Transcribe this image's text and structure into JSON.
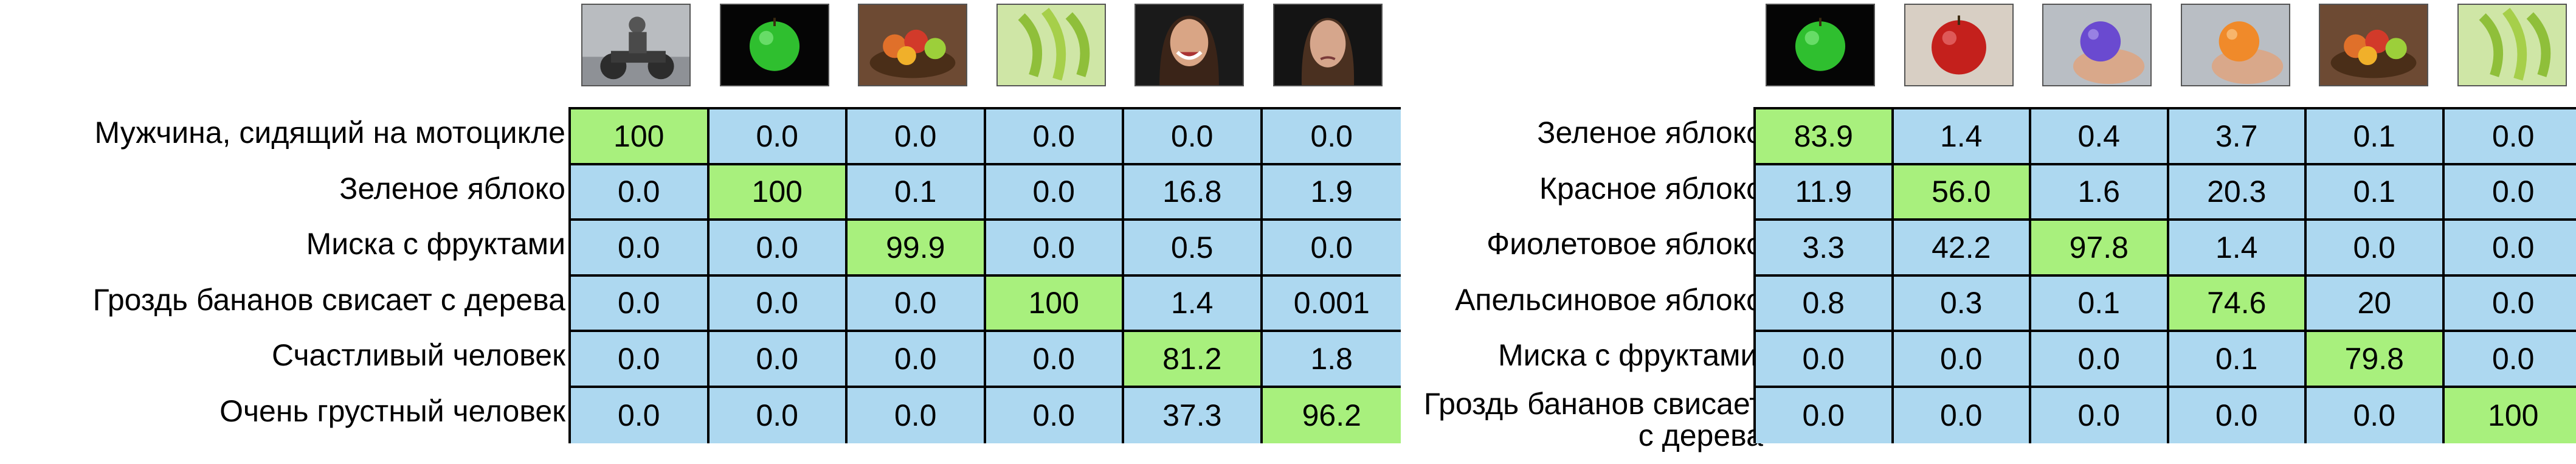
{
  "colors": {
    "cell": "#add8f0",
    "diagonal": "#a8f07d"
  },
  "chart_data": [
    {
      "type": "heatmap",
      "title": "",
      "columns": [
        "motorcycle-rider",
        "green-apple",
        "fruit-bowl",
        "bananas",
        "happy-woman",
        "sad-woman"
      ],
      "rows": [
        "Мужчина, сидящий на мотоцикле",
        "Зеленое яблоко",
        "Миска с фруктами",
        "Гроздь бананов свисает с дерева",
        "Счастливый человек",
        "Очень грустный человек"
      ],
      "values": [
        [
          "100",
          "0.0",
          "0.0",
          "0.0",
          "0.0",
          "0.0"
        ],
        [
          "0.0",
          "100",
          "0.1",
          "0.0",
          "16.8",
          "1.9"
        ],
        [
          "0.0",
          "0.0",
          "99.9",
          "0.0",
          "0.5",
          "0.0"
        ],
        [
          "0.0",
          "0.0",
          "0.0",
          "100",
          "1.4",
          "0.001"
        ],
        [
          "0.0",
          "0.0",
          "0.0",
          "0.0",
          "81.2",
          "1.8"
        ],
        [
          "0.0",
          "0.0",
          "0.0",
          "0.0",
          "37.3",
          "96.2"
        ]
      ],
      "highlight": [
        [
          0,
          0
        ],
        [
          1,
          1
        ],
        [
          2,
          2
        ],
        [
          3,
          3
        ],
        [
          4,
          4
        ],
        [
          5,
          5
        ]
      ]
    },
    {
      "type": "heatmap",
      "title": "",
      "columns": [
        "green-apple",
        "red-apple",
        "purple-apple",
        "orange-apple",
        "fruit-bowl",
        "bananas"
      ],
      "rows": [
        "Зеленое яблоко",
        "Красное яблоко",
        "Фиолетовое яблоко",
        "Апельсиновое яблоко",
        "Миска с фруктами'",
        "Гроздь бананов свисает с дерева"
      ],
      "values": [
        [
          "83.9",
          "1.4",
          "0.4",
          "3.7",
          "0.1",
          "0.0"
        ],
        [
          "11.9",
          "56.0",
          "1.6",
          "20.3",
          "0.1",
          "0.0"
        ],
        [
          "3.3",
          "42.2",
          "97.8",
          "1.4",
          "0.0",
          "0.0"
        ],
        [
          "0.8",
          "0.3",
          "0.1",
          "74.6",
          "20",
          "0.0"
        ],
        [
          "0.0",
          "0.0",
          "0.0",
          "0.1",
          "79.8",
          "0.0"
        ],
        [
          "0.0",
          "0.0",
          "0.0",
          "0.0",
          "0.0",
          "100"
        ]
      ],
      "highlight": [
        [
          0,
          0
        ],
        [
          1,
          1
        ],
        [
          2,
          2
        ],
        [
          3,
          3
        ],
        [
          4,
          4
        ],
        [
          5,
          5
        ]
      ]
    }
  ]
}
